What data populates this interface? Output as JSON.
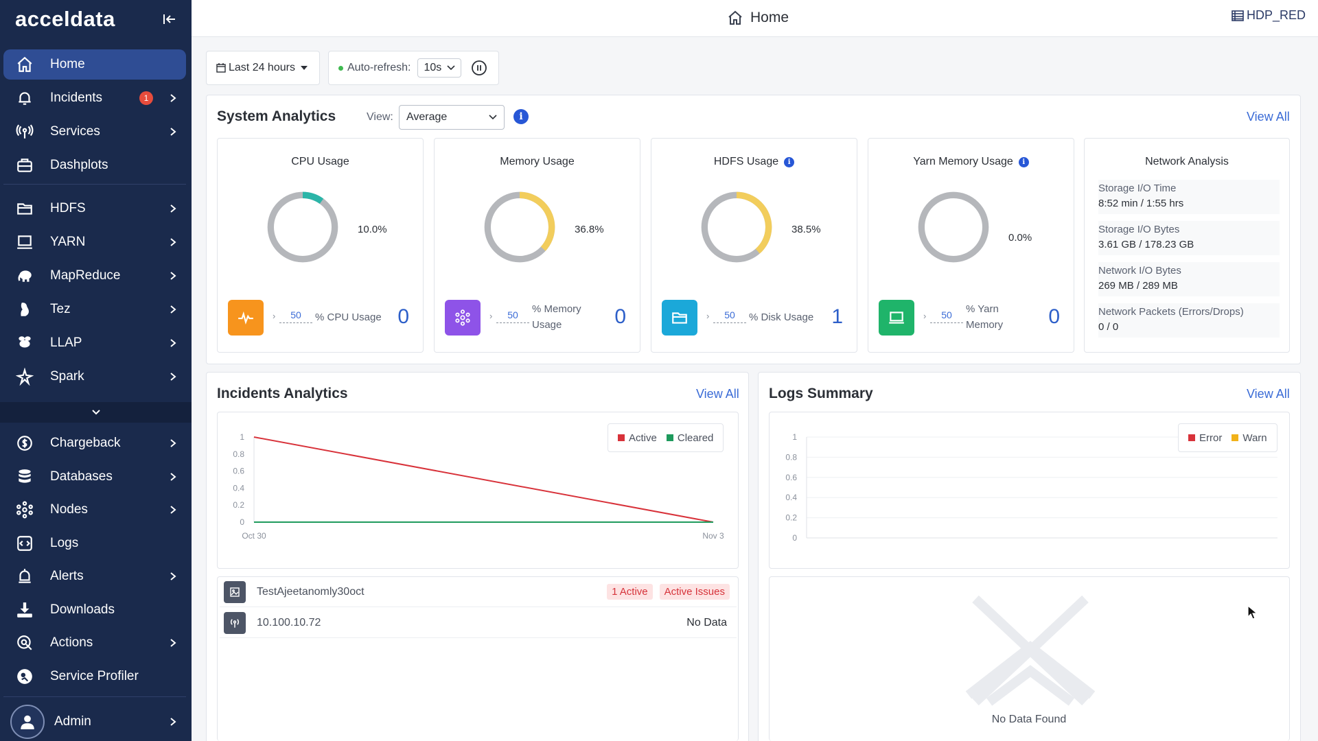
{
  "brand": {
    "logo": "acceldata"
  },
  "sidebar": {
    "items": [
      {
        "label": "Home",
        "icon": "home-icon",
        "active": true
      },
      {
        "label": "Incidents",
        "icon": "bell-icon",
        "badge": "1",
        "chevron": true
      },
      {
        "label": "Services",
        "icon": "antenna-icon",
        "chevron": true
      },
      {
        "label": "Dashplots",
        "icon": "dashplots-icon"
      },
      {
        "label": "HDFS",
        "icon": "folder-icon",
        "chevron": true
      },
      {
        "label": "YARN",
        "icon": "laptop-icon",
        "chevron": true
      },
      {
        "label": "MapReduce",
        "icon": "elephant-icon",
        "chevron": true
      },
      {
        "label": "Tez",
        "icon": "tez-icon",
        "chevron": true
      },
      {
        "label": "LLAP",
        "icon": "bee-icon",
        "chevron": true
      },
      {
        "label": "Spark",
        "icon": "spark-icon",
        "chevron": true
      },
      {
        "label": "Chargeback",
        "icon": "dollar-icon",
        "chevron": true
      },
      {
        "label": "Databases",
        "icon": "database-icon",
        "chevron": true
      },
      {
        "label": "Nodes",
        "icon": "nodes-icon",
        "chevron": true
      },
      {
        "label": "Logs",
        "icon": "code-icon"
      },
      {
        "label": "Alerts",
        "icon": "alert-bell-icon",
        "chevron": true
      },
      {
        "label": "Downloads",
        "icon": "download-icon"
      },
      {
        "label": "Actions",
        "icon": "actions-icon",
        "chevron": true
      },
      {
        "label": "Service Profiler",
        "icon": "profiler-icon"
      }
    ],
    "user": {
      "label": "Admin",
      "icon": "user-icon"
    }
  },
  "header": {
    "title": "Home",
    "cluster": "HDP_RED"
  },
  "toolbar": {
    "time_range": "Last 24 hours",
    "auto_refresh_label": "Auto-refresh:",
    "refresh_interval": "10s"
  },
  "system_analytics": {
    "title": "System Analytics",
    "view_label": "View:",
    "view_value": "Average",
    "view_all": "View All",
    "metrics": [
      {
        "title": "CPU Usage",
        "info": false,
        "percent": 10.0,
        "percent_label": "10.0%",
        "color": "#2bb5a8",
        "icon_bg": "#f7941d",
        "threshold": "50",
        "desc1": "% CPU Usage",
        "desc2": "",
        "count": "0"
      },
      {
        "title": "Memory Usage",
        "info": false,
        "percent": 36.8,
        "percent_label": "36.8%",
        "color": "#f2cd5c",
        "icon_bg": "#8e53e8",
        "threshold": "50",
        "desc1": "% Memory",
        "desc2": "Usage",
        "count": "0"
      },
      {
        "title": "HDFS Usage",
        "info": true,
        "percent": 38.5,
        "percent_label": "38.5%",
        "color": "#f2cd5c",
        "icon_bg": "#1ba8d9",
        "threshold": "50",
        "desc1": "% Disk Usage",
        "desc2": "",
        "count": "1"
      },
      {
        "title": "Yarn Memory Usage",
        "info": true,
        "percent": 0.0,
        "percent_label": "0.0%",
        "color": "#f2cd5c",
        "icon_bg": "#1fb46a",
        "threshold": "50",
        "desc1": "% Yarn",
        "desc2": "Memory",
        "count": "0"
      }
    ],
    "network": {
      "title": "Network Analysis",
      "rows": [
        {
          "label": "Storage I/O Time",
          "value": "8:52 min / 1:55 hrs"
        },
        {
          "label": "Storage I/O Bytes",
          "value": "3.61 GB / 178.23 GB"
        },
        {
          "label": "Network I/O Bytes",
          "value": "269 MB / 289 MB"
        },
        {
          "label": "Network Packets (Errors/Drops)",
          "value": "0 / 0"
        }
      ]
    }
  },
  "incidents_analytics": {
    "title": "Incidents Analytics",
    "view_all": "View All",
    "chart_data": {
      "type": "line",
      "x": [
        "Oct 30",
        "Nov 3"
      ],
      "ylim": [
        0,
        1
      ],
      "yticks": [
        "1",
        "0.8",
        "0.6",
        "0.4",
        "0.2",
        "0"
      ],
      "series": [
        {
          "name": "Active",
          "color": "#d8323a",
          "values": [
            1,
            0
          ]
        },
        {
          "name": "Cleared",
          "color": "#1e9a5c",
          "values": [
            0,
            0
          ]
        }
      ]
    },
    "rows": [
      {
        "name": "TestAjeetanomly30oct",
        "icon": "image-icon",
        "tags": [
          "1 Active",
          "Active Issues"
        ]
      },
      {
        "name": "10.100.10.72",
        "icon": "antenna-icon",
        "status": "No Data"
      }
    ]
  },
  "logs_summary": {
    "title": "Logs Summary",
    "view_all": "View All",
    "chart_data": {
      "type": "line",
      "ylim": [
        0,
        1
      ],
      "yticks": [
        "1",
        "0.8",
        "0.6",
        "0.4",
        "0.2",
        "0"
      ],
      "series": [
        {
          "name": "Error",
          "color": "#d8323a",
          "values": []
        },
        {
          "name": "Warn",
          "color": "#f1b21a",
          "values": []
        }
      ]
    },
    "empty_text": "No Data Found"
  }
}
